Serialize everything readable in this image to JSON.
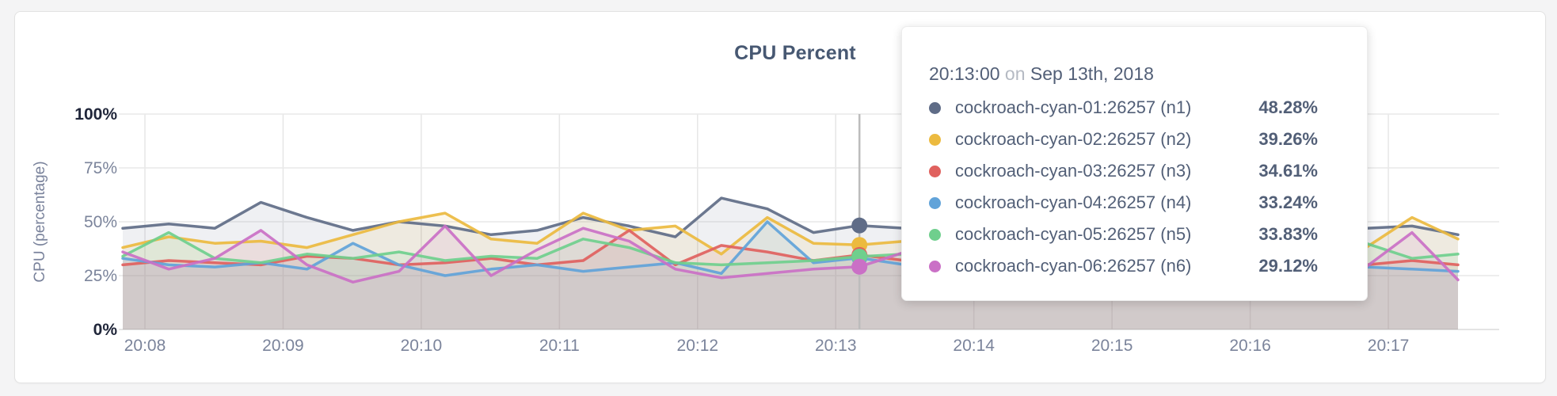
{
  "chart": {
    "title": "CPU Percent",
    "ylabel": "CPU (percentage)"
  },
  "chart_data": {
    "type": "area",
    "title": "CPU Percent",
    "xlabel": "",
    "ylabel": "CPU (percentage)",
    "ylim": [
      0,
      100
    ],
    "ytick_percents": [
      100,
      75,
      50,
      25,
      0
    ],
    "ytick_labels": [
      "100%",
      "75%",
      "50%",
      "25%",
      "0%"
    ],
    "x_ticks": [
      "20:08",
      "20:09",
      "20:10",
      "20:11",
      "20:12",
      "20:13",
      "20:14",
      "20:15",
      "20:16",
      "20:17"
    ],
    "x_start_time": "20:07:50",
    "x_step_seconds": 20,
    "grid": true,
    "legend_position": "tooltip",
    "hover_index": 16,
    "hover_time": "20:13:00",
    "series": [
      {
        "name": "cockroach-cyan-01:26257 (n1)",
        "color": "#5f6c87",
        "values": [
          47,
          49,
          47,
          59,
          52,
          46,
          50,
          48,
          44,
          46,
          52,
          48,
          43,
          61,
          56,
          45,
          48.28,
          47,
          45,
          47,
          44,
          46,
          48,
          45,
          47,
          44,
          46,
          47,
          48,
          44
        ]
      },
      {
        "name": "cockroach-cyan-02:26257 (n2)",
        "color": "#ecba3f",
        "values": [
          38,
          43,
          40,
          41,
          38,
          44,
          50,
          54,
          42,
          40,
          54,
          46,
          48,
          35,
          52,
          40,
          39.26,
          41,
          42,
          45,
          40,
          43,
          46,
          41,
          44,
          40,
          43,
          38,
          52,
          42
        ]
      },
      {
        "name": "cockroach-cyan-03:26257 (n3)",
        "color": "#e0615e",
        "values": [
          30,
          32,
          31,
          30,
          34,
          33,
          30,
          31,
          33,
          30,
          32,
          46,
          30,
          39,
          36,
          32,
          34.61,
          32,
          31,
          33,
          30,
          32,
          31,
          33,
          30,
          32,
          31,
          30,
          32,
          30
        ]
      },
      {
        "name": "cockroach-cyan-04:26257 (n4)",
        "color": "#61a3d9",
        "values": [
          33,
          30,
          29,
          31,
          28,
          40,
          30,
          25,
          28,
          30,
          27,
          29,
          31,
          26,
          50,
          31,
          33.24,
          30,
          29,
          31,
          28,
          30,
          32,
          29,
          31,
          28,
          30,
          29,
          28,
          27
        ]
      },
      {
        "name": "cockroach-cyan-05:26257 (n5)",
        "color": "#6fcf8d",
        "values": [
          34,
          45,
          33,
          31,
          35,
          33,
          36,
          32,
          34,
          33,
          42,
          38,
          31,
          30,
          31,
          32,
          33.83,
          35,
          33,
          42,
          36,
          33,
          35,
          32,
          34,
          33,
          36,
          40,
          33,
          35
        ]
      },
      {
        "name": "cockroach-cyan-06:26257 (n6)",
        "color": "#ca70c6",
        "values": [
          36,
          28,
          33,
          46,
          30,
          22,
          27,
          48,
          25,
          37,
          47,
          41,
          28,
          24,
          26,
          28,
          29.12,
          36,
          50,
          42,
          30,
          28,
          32,
          29,
          31,
          28,
          30,
          29,
          45,
          23
        ]
      }
    ]
  },
  "tooltip": {
    "time": "20:13:00",
    "on_word": "on",
    "date": "Sep 13th, 2018",
    "rows": [
      {
        "label": "cockroach-cyan-01:26257 (n1)",
        "value": "48.28%",
        "color": "#5f6c87"
      },
      {
        "label": "cockroach-cyan-02:26257 (n2)",
        "value": "39.26%",
        "color": "#ecba3f"
      },
      {
        "label": "cockroach-cyan-03:26257 (n3)",
        "value": "34.61%",
        "color": "#e0615e"
      },
      {
        "label": "cockroach-cyan-04:26257 (n4)",
        "value": "33.24%",
        "color": "#61a3d9"
      },
      {
        "label": "cockroach-cyan-05:26257 (n5)",
        "value": "33.83%",
        "color": "#6fcf8d"
      },
      {
        "label": "cockroach-cyan-06:26257 (n6)",
        "value": "29.12%",
        "color": "#ca70c6"
      }
    ]
  }
}
